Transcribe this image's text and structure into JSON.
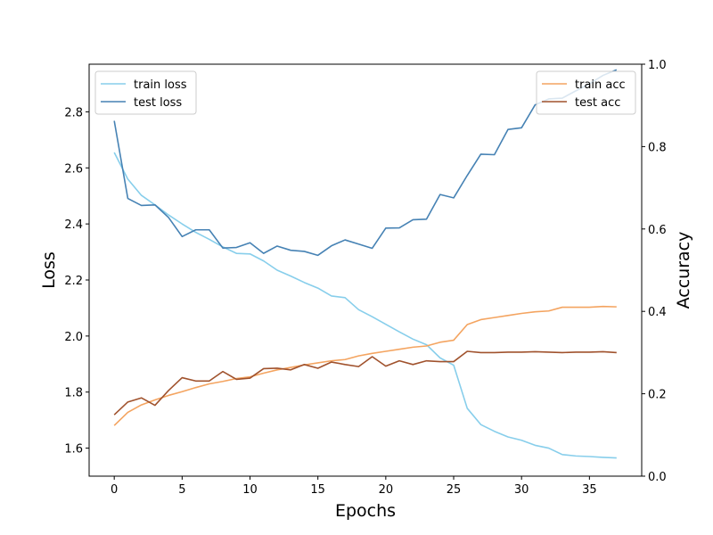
{
  "chart_data": {
    "type": "line",
    "xlabel": "Epochs",
    "ylabel_left": "Loss",
    "ylabel_right": "Accuracy",
    "x_ticks": [
      0,
      5,
      10,
      15,
      20,
      25,
      30,
      35
    ],
    "y_left_ticks": [
      1.6,
      1.8,
      2.0,
      2.2,
      2.4,
      2.6,
      2.8
    ],
    "y_right_ticks": [
      0.0,
      0.2,
      0.4,
      0.6,
      0.8,
      1.0
    ],
    "xlim": [
      -1.85,
      38.85
    ],
    "ylim_left": [
      1.5,
      2.97
    ],
    "ylim_right": [
      0.0,
      1.0
    ],
    "grid": false,
    "legend_left_placement": "top-left",
    "legend_right_placement": "top-right",
    "x": [
      0,
      1,
      2,
      3,
      4,
      5,
      6,
      7,
      8,
      9,
      10,
      11,
      12,
      13,
      14,
      15,
      16,
      17,
      18,
      19,
      20,
      21,
      22,
      23,
      24,
      25,
      26,
      27,
      28,
      29,
      30,
      31,
      32,
      33,
      34,
      35,
      36,
      37
    ],
    "series": [
      {
        "name": "train loss",
        "axis": "left",
        "color": "#87ceeb",
        "values": [
          2.655,
          2.56,
          2.502,
          2.468,
          2.432,
          2.4,
          2.37,
          2.345,
          2.318,
          2.295,
          2.293,
          2.268,
          2.235,
          2.214,
          2.191,
          2.171,
          2.143,
          2.137,
          2.094,
          2.069,
          2.042,
          2.015,
          1.989,
          1.969,
          1.922,
          1.896,
          1.742,
          1.684,
          1.66,
          1.64,
          1.628,
          1.61,
          1.6,
          1.577,
          1.572,
          1.57,
          1.567,
          1.565
        ]
      },
      {
        "name": "test loss",
        "axis": "left",
        "color": "#4682b4",
        "values": [
          2.768,
          2.491,
          2.466,
          2.468,
          2.423,
          2.355,
          2.379,
          2.379,
          2.314,
          2.316,
          2.333,
          2.295,
          2.321,
          2.306,
          2.302,
          2.288,
          2.322,
          2.343,
          2.328,
          2.313,
          2.385,
          2.386,
          2.415,
          2.417,
          2.505,
          2.493,
          2.573,
          2.649,
          2.647,
          2.737,
          2.743,
          2.825,
          2.846,
          2.849,
          2.875,
          2.9,
          2.93,
          2.95
        ]
      },
      {
        "name": "train acc",
        "axis": "right",
        "color": "#f4a460",
        "values": [
          0.123,
          0.155,
          0.173,
          0.185,
          0.196,
          0.205,
          0.215,
          0.224,
          0.23,
          0.237,
          0.241,
          0.25,
          0.258,
          0.264,
          0.27,
          0.275,
          0.28,
          0.283,
          0.292,
          0.298,
          0.303,
          0.308,
          0.313,
          0.316,
          0.325,
          0.33,
          0.368,
          0.38,
          0.385,
          0.39,
          0.395,
          0.399,
          0.401,
          0.41,
          0.41,
          0.41,
          0.412,
          0.411
        ]
      },
      {
        "name": "test acc",
        "axis": "right",
        "color": "#a0522d",
        "values": [
          0.149,
          0.18,
          0.19,
          0.172,
          0.208,
          0.239,
          0.231,
          0.231,
          0.254,
          0.235,
          0.238,
          0.261,
          0.262,
          0.258,
          0.271,
          0.262,
          0.277,
          0.271,
          0.266,
          0.29,
          0.267,
          0.28,
          0.271,
          0.28,
          0.278,
          0.278,
          0.303,
          0.3,
          0.3,
          0.301,
          0.301,
          0.302,
          0.301,
          0.3,
          0.301,
          0.301,
          0.302,
          0.3
        ]
      }
    ]
  }
}
